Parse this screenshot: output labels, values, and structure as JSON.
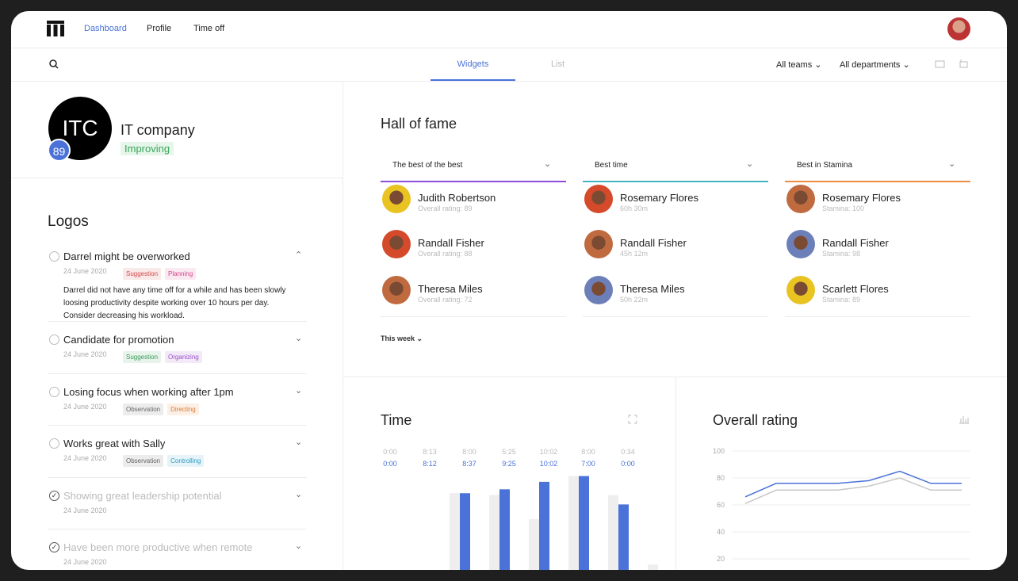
{
  "nav": {
    "items": [
      "Dashboard",
      "Profile",
      "Time off"
    ]
  },
  "tabs": [
    "Widgets",
    "List"
  ],
  "filters": [
    "All teams",
    "All departments"
  ],
  "company": {
    "initials": "ITC",
    "name": "IT company",
    "score": 89,
    "status": "Improving"
  },
  "logos": {
    "title": "Logos",
    "items": [
      {
        "title": "Darrel might be overworked",
        "date": "24 June 2020",
        "done": false,
        "tags": [
          {
            "text": "Suggestion",
            "color": "#d24b4b"
          },
          {
            "text": "Planning",
            "color": "#d2478f"
          }
        ],
        "body": "Darrel did not have any time off for a while and has been slowly loosing productivity despite working over 10 hours per day. Consider decreasing his workload."
      },
      {
        "title": "Candidate for promotion",
        "date": "24 June 2020",
        "done": false,
        "tags": [
          {
            "text": "Suggestion",
            "color": "#3a9d5a"
          },
          {
            "text": "Organizing",
            "color": "#9a4fc7"
          }
        ]
      },
      {
        "title": "Losing focus when working after 1pm",
        "date": "24 June 2020",
        "done": false,
        "tags": [
          {
            "text": "Observation",
            "color": "#666666"
          },
          {
            "text": "Directing",
            "color": "#e07b2e"
          }
        ]
      },
      {
        "title": "Works great with Sally",
        "date": "24 June 2020",
        "done": false,
        "tags": [
          {
            "text": "Observation",
            "color": "#666666"
          },
          {
            "text": "Controlling",
            "color": "#2f9ec4"
          }
        ]
      },
      {
        "title": "Showing great leadership potential",
        "date": "24 June 2020",
        "done": true,
        "tags": []
      },
      {
        "title": "Have been more productive when remote",
        "date": "24 June 2020",
        "done": true,
        "tags": []
      }
    ]
  },
  "hall_of_fame": {
    "title": "Hall of fame",
    "period": "This week",
    "columns": [
      {
        "title": "The best of the best",
        "color": "#8b4fd9",
        "people": [
          {
            "name": "Judith Robertson",
            "detail": "Overall rating: 89"
          },
          {
            "name": "Randall Fisher",
            "detail": "Overall rating: 88"
          },
          {
            "name": "Theresa Miles",
            "detail": "Overall rating: 72"
          }
        ]
      },
      {
        "title": "Best time",
        "color": "#45b1c2",
        "people": [
          {
            "name": "Rosemary Flores",
            "detail": "60h 30m"
          },
          {
            "name": "Randall Fisher",
            "detail": "45h 12m"
          },
          {
            "name": "Theresa Miles",
            "detail": "50h 22m"
          }
        ]
      },
      {
        "title": "Best in Stamina",
        "color": "#f08c3e",
        "people": [
          {
            "name": "Rosemary Flores",
            "detail": "Stamina: 100"
          },
          {
            "name": "Randall Fisher",
            "detail": "Stamina: 98"
          },
          {
            "name": "Scarlett Flores",
            "detail": "Stamina: 89"
          }
        ]
      }
    ]
  },
  "time_chart": {
    "type": "bar",
    "title": "Time",
    "series": [
      {
        "color": "#eeeeee",
        "values": [
          0,
          8.2167,
          8.0,
          5.4167,
          10.0333,
          8.0,
          0.5667
        ],
        "value_labels": [
          "0:00",
          "8:13",
          "8:00",
          "5:25",
          "10:02",
          "8:00",
          "0:34"
        ]
      },
      {
        "color": "#4a72d8",
        "values": [
          0,
          8.2,
          8.6167,
          9.4167,
          10.0333,
          7.0,
          0
        ],
        "value_labels": [
          "0:00",
          "8:12",
          "8:37",
          "9:25",
          "10:02",
          "7:00",
          "0:00"
        ]
      }
    ]
  },
  "rating_chart": {
    "type": "line",
    "title": "Overall rating",
    "ylim": [
      20,
      100
    ],
    "yticks": [
      100,
      80,
      60,
      40,
      20
    ],
    "grid": true,
    "series": [
      {
        "color": "#c8c8c8",
        "values": [
          61,
          71,
          71,
          71,
          74,
          80,
          71,
          71
        ]
      },
      {
        "color": "#4a72d8",
        "values": [
          66,
          76,
          76,
          76,
          78,
          85,
          76,
          76
        ]
      }
    ]
  }
}
